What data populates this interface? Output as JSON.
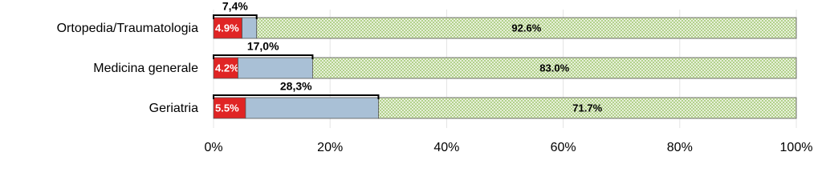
{
  "chart_data": {
    "type": "stacked-bar-horizontal",
    "categories": [
      "Ortopedia/Traumatologia",
      "Medicina generale",
      "Geriatria"
    ],
    "series": [
      {
        "color": "#e02424",
        "values": [
          4.9,
          4.2,
          5.5
        ],
        "value_labels": [
          "4.9%",
          "4.2%",
          "5.5%"
        ]
      },
      {
        "color": "#a9c0d6",
        "values": [
          2.5,
          12.8,
          22.8
        ]
      },
      {
        "color": "#9cc46a",
        "values": [
          92.6,
          83.0,
          71.7
        ],
        "value_labels": [
          "92.6%",
          "83.0%",
          "71.7%"
        ]
      }
    ],
    "totals": {
      "values": [
        7.4,
        17.0,
        28.3
      ],
      "value_labels": [
        "7,4%",
        "17,0%",
        "28,3%"
      ]
    },
    "xlim": [
      0,
      100
    ],
    "xticks": [
      {
        "value": 0,
        "label": "0%"
      },
      {
        "value": 20,
        "label": "20%"
      },
      {
        "value": 40,
        "label": "40%"
      },
      {
        "value": 60,
        "label": "60%"
      },
      {
        "value": 80,
        "label": "80%"
      },
      {
        "value": 100,
        "label": "100%"
      }
    ],
    "grid": true
  }
}
